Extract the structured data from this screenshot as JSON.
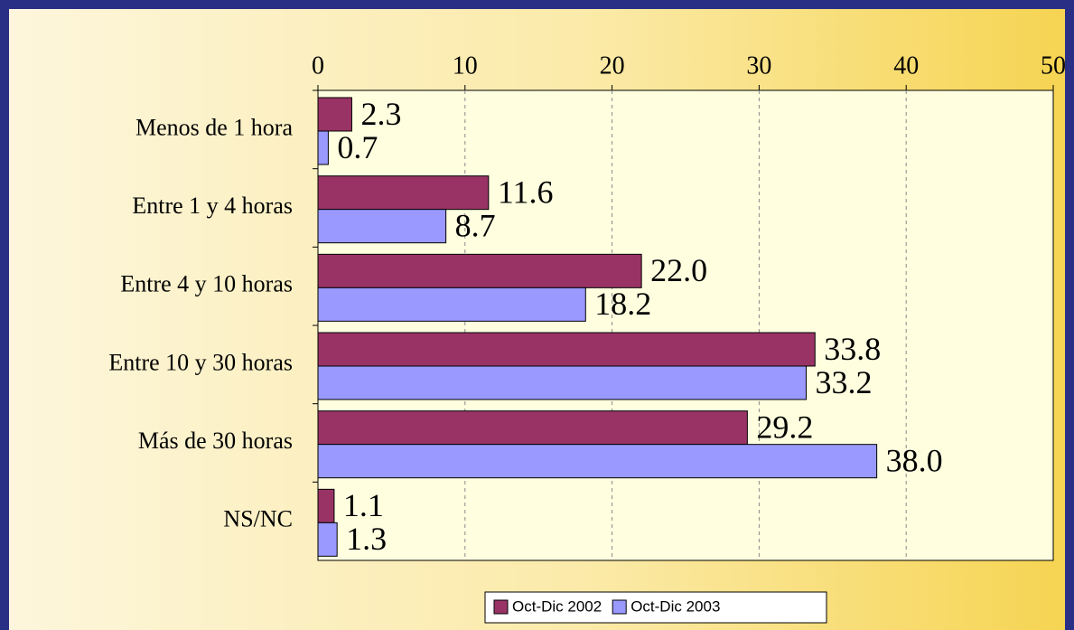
{
  "chart_data": {
    "type": "bar",
    "orientation": "horizontal",
    "categories": [
      "Menos de 1 hora",
      "Entre 1 y 4 horas",
      "Entre 4 y 10 horas",
      "Entre 10 y 30 horas",
      "Más de 30 horas",
      "NS/NC"
    ],
    "series": [
      {
        "name": "Oct-Dic 2002",
        "color": "#993366",
        "values": [
          2.3,
          11.6,
          22.0,
          33.8,
          29.2,
          1.1
        ],
        "value_labels": [
          "2.3",
          "11.6",
          "22.0",
          "33.8",
          "29.2",
          "1.1"
        ]
      },
      {
        "name": "Oct-Dic 2003",
        "color": "#9999ff",
        "values": [
          0.7,
          8.7,
          18.2,
          33.2,
          38.0,
          1.3
        ],
        "value_labels": [
          "0.7",
          "8.7",
          "18.2",
          "33.2",
          "38.0",
          "1.3"
        ]
      }
    ],
    "xlim": [
      0,
      50
    ],
    "xticks": [
      0,
      10,
      20,
      30,
      40,
      50
    ],
    "grid": true,
    "legend": "bottom"
  }
}
